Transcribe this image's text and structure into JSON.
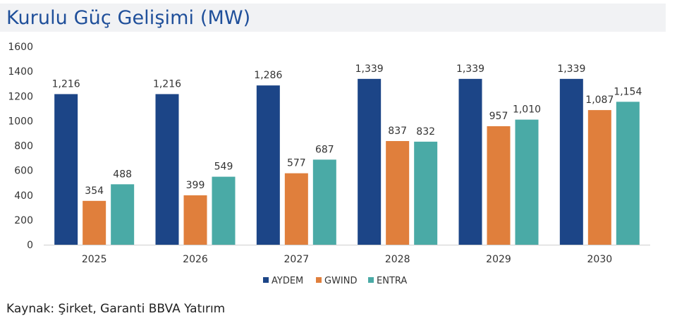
{
  "header": {
    "title": "Kurulu Güç Gelişimi (MW)"
  },
  "footer": {
    "source": "Kaynak: Şirket, Garanti BBVA Yatırım"
  },
  "chart_data": {
    "type": "bar",
    "title": "Kurulu Güç Gelişimi (MW)",
    "xlabel": "",
    "ylabel": "",
    "categories": [
      "2025",
      "2026",
      "2027",
      "2028",
      "2029",
      "2030"
    ],
    "series": [
      {
        "name": "AYDEM",
        "color": "#1c4587",
        "values": [
          1216,
          1216,
          1286,
          1339,
          1339,
          1339
        ],
        "labels": [
          "1,216",
          "1,216",
          "1,286",
          "1,339",
          "1,339",
          "1,339"
        ]
      },
      {
        "name": "GWIND",
        "color": "#e07f3c",
        "values": [
          354,
          399,
          577,
          837,
          957,
          1087
        ],
        "labels": [
          "354",
          "399",
          "577",
          "837",
          "957",
          "1,087"
        ]
      },
      {
        "name": "ENTRA",
        "color": "#4aaaa6",
        "values": [
          488,
          549,
          687,
          832,
          1010,
          1154
        ],
        "labels": [
          "488",
          "549",
          "687",
          "832",
          "1,010",
          "1,154"
        ]
      }
    ],
    "ylim": [
      0,
      1600
    ],
    "yticks": [
      "0",
      "200",
      "400",
      "600",
      "800",
      "1000",
      "1200",
      "1400",
      "1600"
    ],
    "grid": false,
    "legend_position": "bottom"
  }
}
